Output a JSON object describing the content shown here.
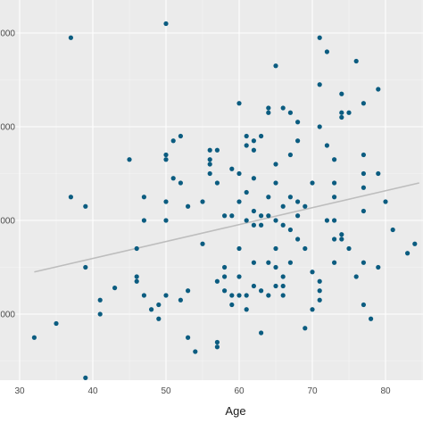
{
  "chart_data": {
    "type": "scatter",
    "title": "",
    "xlabel": "Age",
    "ylabel": "",
    "x_ticks": [
      "30",
      "40",
      "50",
      "60",
      "70",
      "80"
    ],
    "y_ticks_visible": [
      "000",
      "000",
      "000",
      "000"
    ],
    "xlim": [
      29.4,
      84.6
    ],
    "ylim": [
      0.5,
      42.5
    ],
    "grid": true,
    "legend": "none",
    "colors": {
      "panel_background": "#ebebeb",
      "grid_major": "#ffffff",
      "grid_minor": "#f5f5f5",
      "point": "#0b5c80",
      "trend_line": "#bdbdbd",
      "axis_text": "#4d4d4d",
      "axis_title": "#1a1a1a"
    },
    "trend_line": {
      "x": [
        32,
        84.6
      ],
      "y": [
        14.5,
        24.0
      ]
    },
    "points": [
      {
        "x": 32,
        "y": 7.5
      },
      {
        "x": 35,
        "y": 9.0
      },
      {
        "x": 37,
        "y": 39.5
      },
      {
        "x": 37,
        "y": 22.5
      },
      {
        "x": 39,
        "y": 3.2
      },
      {
        "x": 39,
        "y": 21.5
      },
      {
        "x": 39,
        "y": 15.0
      },
      {
        "x": 41,
        "y": 10.0
      },
      {
        "x": 41,
        "y": 11.5
      },
      {
        "x": 43,
        "y": 12.8
      },
      {
        "x": 45,
        "y": 26.5
      },
      {
        "x": 46,
        "y": 17.0
      },
      {
        "x": 46,
        "y": 14.0
      },
      {
        "x": 46,
        "y": 13.5
      },
      {
        "x": 47,
        "y": 12.0
      },
      {
        "x": 47,
        "y": 20.0
      },
      {
        "x": 47,
        "y": 22.5
      },
      {
        "x": 48,
        "y": 10.5
      },
      {
        "x": 49,
        "y": 9.5
      },
      {
        "x": 49,
        "y": 11.0
      },
      {
        "x": 50,
        "y": 41.0
      },
      {
        "x": 50,
        "y": 27.0
      },
      {
        "x": 50,
        "y": 26.5
      },
      {
        "x": 50,
        "y": 22.0
      },
      {
        "x": 50,
        "y": 20.0
      },
      {
        "x": 50,
        "y": 12.0
      },
      {
        "x": 51,
        "y": 24.5
      },
      {
        "x": 51,
        "y": 28.5
      },
      {
        "x": 52,
        "y": 29.0
      },
      {
        "x": 52,
        "y": 24.0
      },
      {
        "x": 52,
        "y": 11.5
      },
      {
        "x": 53,
        "y": 7.5
      },
      {
        "x": 53,
        "y": 21.5
      },
      {
        "x": 53,
        "y": 12.5
      },
      {
        "x": 54,
        "y": 6.0
      },
      {
        "x": 55,
        "y": 22.0
      },
      {
        "x": 55,
        "y": 17.5
      },
      {
        "x": 56,
        "y": 27.5
      },
      {
        "x": 56,
        "y": 26.5
      },
      {
        "x": 56,
        "y": 26.0
      },
      {
        "x": 56,
        "y": 25.0
      },
      {
        "x": 57,
        "y": 27.5
      },
      {
        "x": 57,
        "y": 24.0
      },
      {
        "x": 57,
        "y": 13.5
      },
      {
        "x": 57,
        "y": 7.0
      },
      {
        "x": 57,
        "y": 6.5
      },
      {
        "x": 58,
        "y": 20.5
      },
      {
        "x": 58,
        "y": 15.0
      },
      {
        "x": 58,
        "y": 14.0
      },
      {
        "x": 58,
        "y": 12.5
      },
      {
        "x": 59,
        "y": 20.5
      },
      {
        "x": 59,
        "y": 25.5
      },
      {
        "x": 59,
        "y": 12.0
      },
      {
        "x": 59,
        "y": 11.0
      },
      {
        "x": 60,
        "y": 32.5
      },
      {
        "x": 60,
        "y": 25.0
      },
      {
        "x": 60,
        "y": 22.0
      },
      {
        "x": 60,
        "y": 17.0
      },
      {
        "x": 60,
        "y": 14.0
      },
      {
        "x": 60,
        "y": 12.0
      },
      {
        "x": 61,
        "y": 28.0
      },
      {
        "x": 61,
        "y": 29.0
      },
      {
        "x": 61,
        "y": 23.0
      },
      {
        "x": 61,
        "y": 20.0
      },
      {
        "x": 61,
        "y": 12.0
      },
      {
        "x": 61,
        "y": 10.5
      },
      {
        "x": 62,
        "y": 28.5
      },
      {
        "x": 62,
        "y": 27.5
      },
      {
        "x": 62,
        "y": 24.5
      },
      {
        "x": 62,
        "y": 21.0
      },
      {
        "x": 62,
        "y": 19.5
      },
      {
        "x": 62,
        "y": 15.5
      },
      {
        "x": 62,
        "y": 13.0
      },
      {
        "x": 63,
        "y": 29.0
      },
      {
        "x": 63,
        "y": 20.5
      },
      {
        "x": 63,
        "y": 19.5
      },
      {
        "x": 63,
        "y": 12.5
      },
      {
        "x": 63,
        "y": 8.0
      },
      {
        "x": 64,
        "y": 32.0
      },
      {
        "x": 64,
        "y": 31.5
      },
      {
        "x": 64,
        "y": 22.5
      },
      {
        "x": 64,
        "y": 20.5
      },
      {
        "x": 64,
        "y": 15.5
      },
      {
        "x": 64,
        "y": 12.0
      },
      {
        "x": 65,
        "y": 36.5
      },
      {
        "x": 65,
        "y": 26.0
      },
      {
        "x": 65,
        "y": 24.0
      },
      {
        "x": 65,
        "y": 20.0
      },
      {
        "x": 65,
        "y": 17.0
      },
      {
        "x": 65,
        "y": 15.0
      },
      {
        "x": 65,
        "y": 13.0
      },
      {
        "x": 66,
        "y": 32.0
      },
      {
        "x": 66,
        "y": 21.5
      },
      {
        "x": 66,
        "y": 19.5
      },
      {
        "x": 66,
        "y": 14.0
      },
      {
        "x": 66,
        "y": 13.0
      },
      {
        "x": 66,
        "y": 12.0
      },
      {
        "x": 67,
        "y": 31.5
      },
      {
        "x": 67,
        "y": 27.0
      },
      {
        "x": 67,
        "y": 22.5
      },
      {
        "x": 67,
        "y": 19.0
      },
      {
        "x": 67,
        "y": 15.5
      },
      {
        "x": 68,
        "y": 30.5
      },
      {
        "x": 68,
        "y": 28.5
      },
      {
        "x": 68,
        "y": 22.0
      },
      {
        "x": 68,
        "y": 20.5
      },
      {
        "x": 68,
        "y": 18.0
      },
      {
        "x": 69,
        "y": 21.5
      },
      {
        "x": 69,
        "y": 17.0
      },
      {
        "x": 69,
        "y": 8.5
      },
      {
        "x": 70,
        "y": 14.5
      },
      {
        "x": 70,
        "y": 10.5
      },
      {
        "x": 70,
        "y": 24.0
      },
      {
        "x": 71,
        "y": 39.5
      },
      {
        "x": 71,
        "y": 34.5
      },
      {
        "x": 71,
        "y": 30.0
      },
      {
        "x": 71,
        "y": 13.5
      },
      {
        "x": 71,
        "y": 12.5
      },
      {
        "x": 71,
        "y": 11.5
      },
      {
        "x": 72,
        "y": 38.0
      },
      {
        "x": 72,
        "y": 28.0
      },
      {
        "x": 72,
        "y": 20.0
      },
      {
        "x": 73,
        "y": 26.5
      },
      {
        "x": 73,
        "y": 24.0
      },
      {
        "x": 73,
        "y": 22.5
      },
      {
        "x": 73,
        "y": 20.0
      },
      {
        "x": 73,
        "y": 18.0
      },
      {
        "x": 73,
        "y": 15.5
      },
      {
        "x": 74,
        "y": 33.5
      },
      {
        "x": 74,
        "y": 31.5
      },
      {
        "x": 74,
        "y": 31.0
      },
      {
        "x": 74,
        "y": 18.5
      },
      {
        "x": 74,
        "y": 18.0
      },
      {
        "x": 75,
        "y": 17.0
      },
      {
        "x": 75,
        "y": 31.5
      },
      {
        "x": 76,
        "y": 37.0
      },
      {
        "x": 76,
        "y": 14.0
      },
      {
        "x": 77,
        "y": 32.5
      },
      {
        "x": 77,
        "y": 27.0
      },
      {
        "x": 77,
        "y": 25.0
      },
      {
        "x": 77,
        "y": 23.5
      },
      {
        "x": 77,
        "y": 21.0
      },
      {
        "x": 77,
        "y": 15.5
      },
      {
        "x": 77,
        "y": 11.0
      },
      {
        "x": 78,
        "y": 9.5
      },
      {
        "x": 79,
        "y": 34.0
      },
      {
        "x": 79,
        "y": 25.0
      },
      {
        "x": 79,
        "y": 15.0
      },
      {
        "x": 80,
        "y": 22.0
      },
      {
        "x": 81,
        "y": 19.0
      },
      {
        "x": 83,
        "y": 16.5
      },
      {
        "x": 84,
        "y": 17.5
      }
    ]
  }
}
